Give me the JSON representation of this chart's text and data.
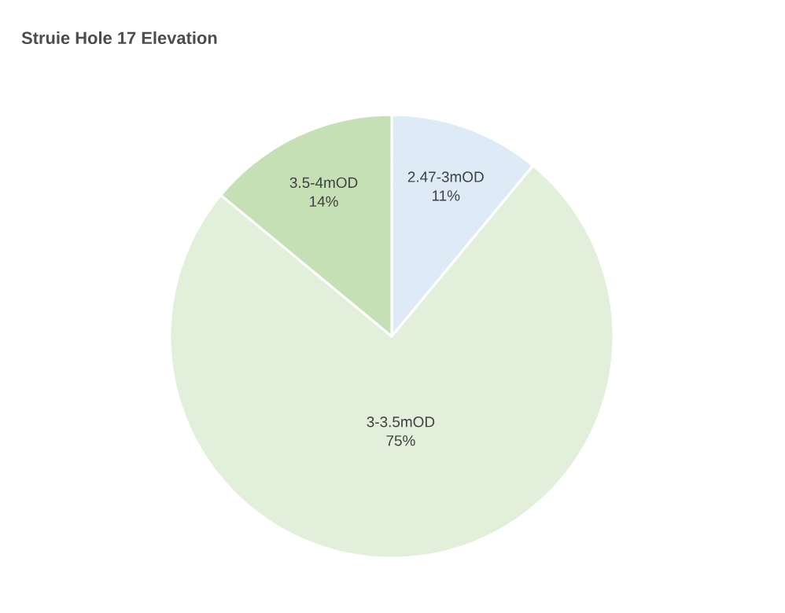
{
  "chart_data": {
    "type": "pie",
    "title": "Struie Hole 17 Elevation",
    "categories": [
      "2.47-3mOD",
      "3-3.5mOD",
      "3.5-4mOD"
    ],
    "values": [
      11,
      75,
      14
    ],
    "value_labels": [
      "11%",
      "75%",
      "14%"
    ],
    "colors": [
      "#deebf7",
      "#e2efda",
      "#c5e0b4"
    ]
  }
}
